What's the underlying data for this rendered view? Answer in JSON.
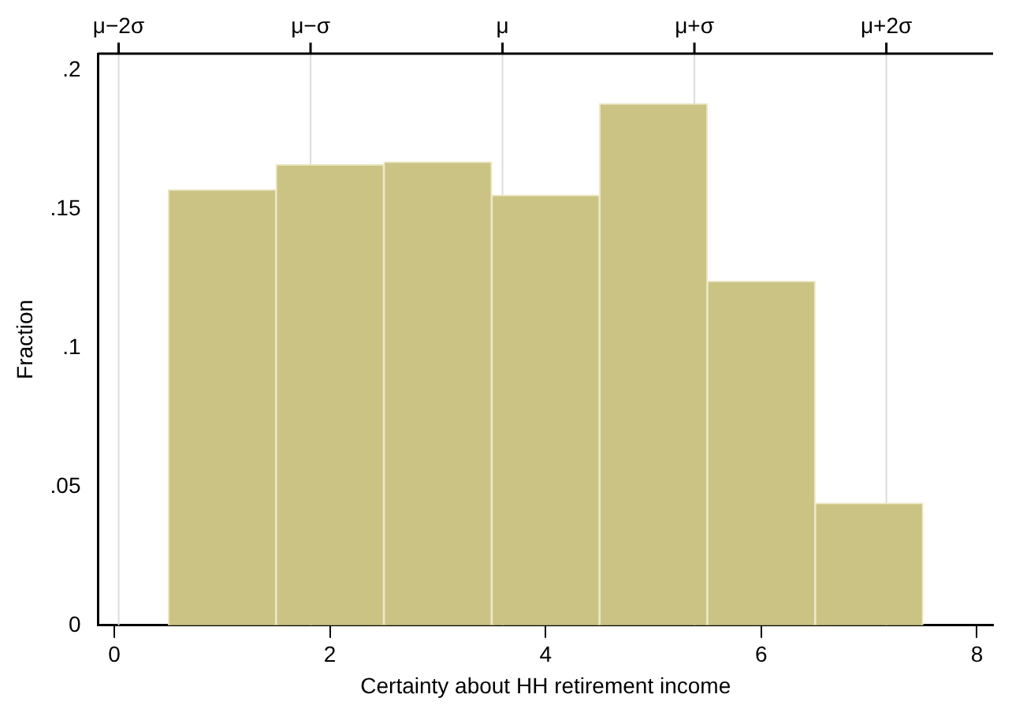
{
  "chart_data": {
    "type": "histogram",
    "xlabel": "Certainty about HH retirement income",
    "ylabel": "Fraction",
    "bins": [
      0.5,
      1.5,
      2.5,
      3.5,
      4.5,
      5.5,
      6.5,
      7.5
    ],
    "values": [
      0.157,
      0.166,
      0.167,
      0.155,
      0.188,
      0.124,
      0.044
    ],
    "color": "#cbc383",
    "xlim": [
      -0.15,
      8.15
    ],
    "xticks": [
      0,
      2,
      4,
      6,
      8
    ],
    "ylim": [
      0,
      0.206
    ],
    "yticks": [
      {
        "value": 0,
        "label": "0"
      },
      {
        "value": 0.05,
        "label": ".05"
      },
      {
        "value": 0.1,
        "label": ".1"
      },
      {
        "value": 0.15,
        "label": ".15"
      },
      {
        "value": 0.2,
        "label": ".2"
      }
    ],
    "ref_lines": [
      {
        "axis": "x",
        "value": 0.04,
        "label": "μ−2σ",
        "color": "#dcdcdc"
      },
      {
        "axis": "x",
        "value": 1.82,
        "label": "μ−σ",
        "color": "#dcdcdc"
      },
      {
        "axis": "x",
        "value": 3.6,
        "label": "μ",
        "color": "#dcdcdc"
      },
      {
        "axis": "x",
        "value": 5.38,
        "label": "μ+σ",
        "color": "#dcdcdc"
      },
      {
        "axis": "x",
        "value": 7.16,
        "label": "μ+2σ",
        "color": "#dcdcdc"
      }
    ],
    "legend": false
  }
}
